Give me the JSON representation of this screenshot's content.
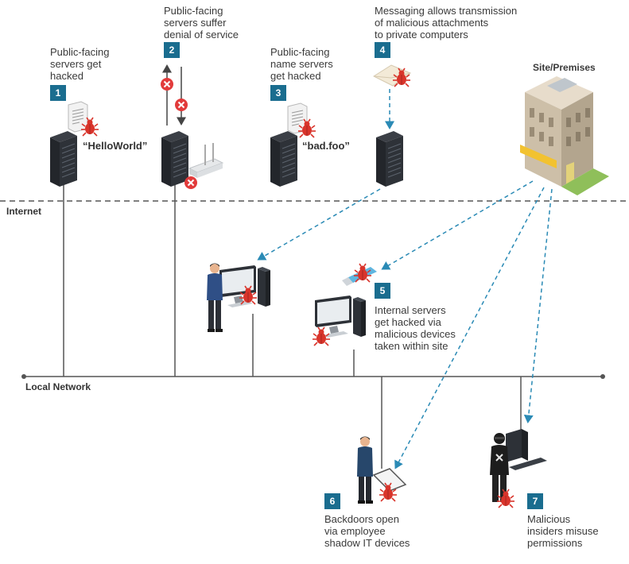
{
  "labels": {
    "internet": "Internet",
    "local_network": "Local Network",
    "site": "Site/Premises"
  },
  "steps": [
    {
      "num": "1",
      "text": "Public-facing\nservers get\nhacked"
    },
    {
      "num": "2",
      "text": "Public-facing\nservers suffer\ndenial of service"
    },
    {
      "num": "3",
      "text": "Public-facing\nname servers\nget hacked"
    },
    {
      "num": "4",
      "text": "Messaging allows transmission\nof malicious attachments\nto private computers"
    },
    {
      "num": "5",
      "text": "Internal servers\nget hacked via\nmalicious devices\ntaken within site"
    },
    {
      "num": "6",
      "text": "Backdoors open\nvia employee\nshadow IT devices"
    },
    {
      "num": "7",
      "text": "Malicious\ninsiders misuse\npermissions"
    }
  ],
  "quotes": {
    "hello": "“HelloWorld”",
    "badfoo": "“bad.foo”"
  },
  "colors": {
    "badge": "#1a6d8f",
    "dashed_arrow": "#2a8ab5",
    "bug": "#d9342b",
    "blocked": "#e23b3b",
    "line": "#555555"
  },
  "icons": [
    "server-icon",
    "document-icon",
    "bug-icon",
    "blocked-icon",
    "router-icon",
    "envelope-icon",
    "building-icon",
    "employee-icon",
    "desktop-icon",
    "usb-drive-icon",
    "tablet-icon",
    "hooded-insider-icon"
  ]
}
